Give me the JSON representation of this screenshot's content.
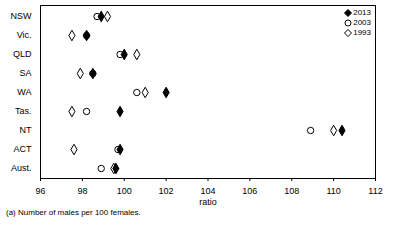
{
  "chart_data": {
    "type": "dot",
    "orientation": "horizontal",
    "xlabel": "ratio",
    "caption": "(a) Number of males per 100 females.",
    "categories": [
      "NSW",
      "Vic.",
      "QLD",
      "SA",
      "WA",
      "Tas.",
      "NT",
      "ACT",
      "Aust."
    ],
    "series": [
      {
        "name": "2013",
        "color": "#000000",
        "marker": "diamond",
        "values": [
          98.9,
          98.2,
          100.0,
          98.5,
          102.0,
          99.8,
          110.4,
          99.8,
          99.6
        ]
      },
      {
        "name": "2003",
        "color": "#000000",
        "marker": "circle-open",
        "values": [
          98.7,
          98.2,
          99.8,
          98.5,
          100.6,
          98.2,
          108.9,
          99.7,
          98.9
        ]
      },
      {
        "name": "1993",
        "color": "#000000",
        "marker": "diamond-open",
        "values": [
          99.2,
          97.5,
          100.6,
          97.9,
          101.0,
          97.5,
          110.0,
          97.6,
          99.5
        ]
      }
    ],
    "xlim": [
      96,
      112
    ],
    "xticks": [
      96,
      98,
      100,
      102,
      104,
      106,
      108,
      110,
      112
    ],
    "grid": false,
    "legend": "top-right"
  }
}
